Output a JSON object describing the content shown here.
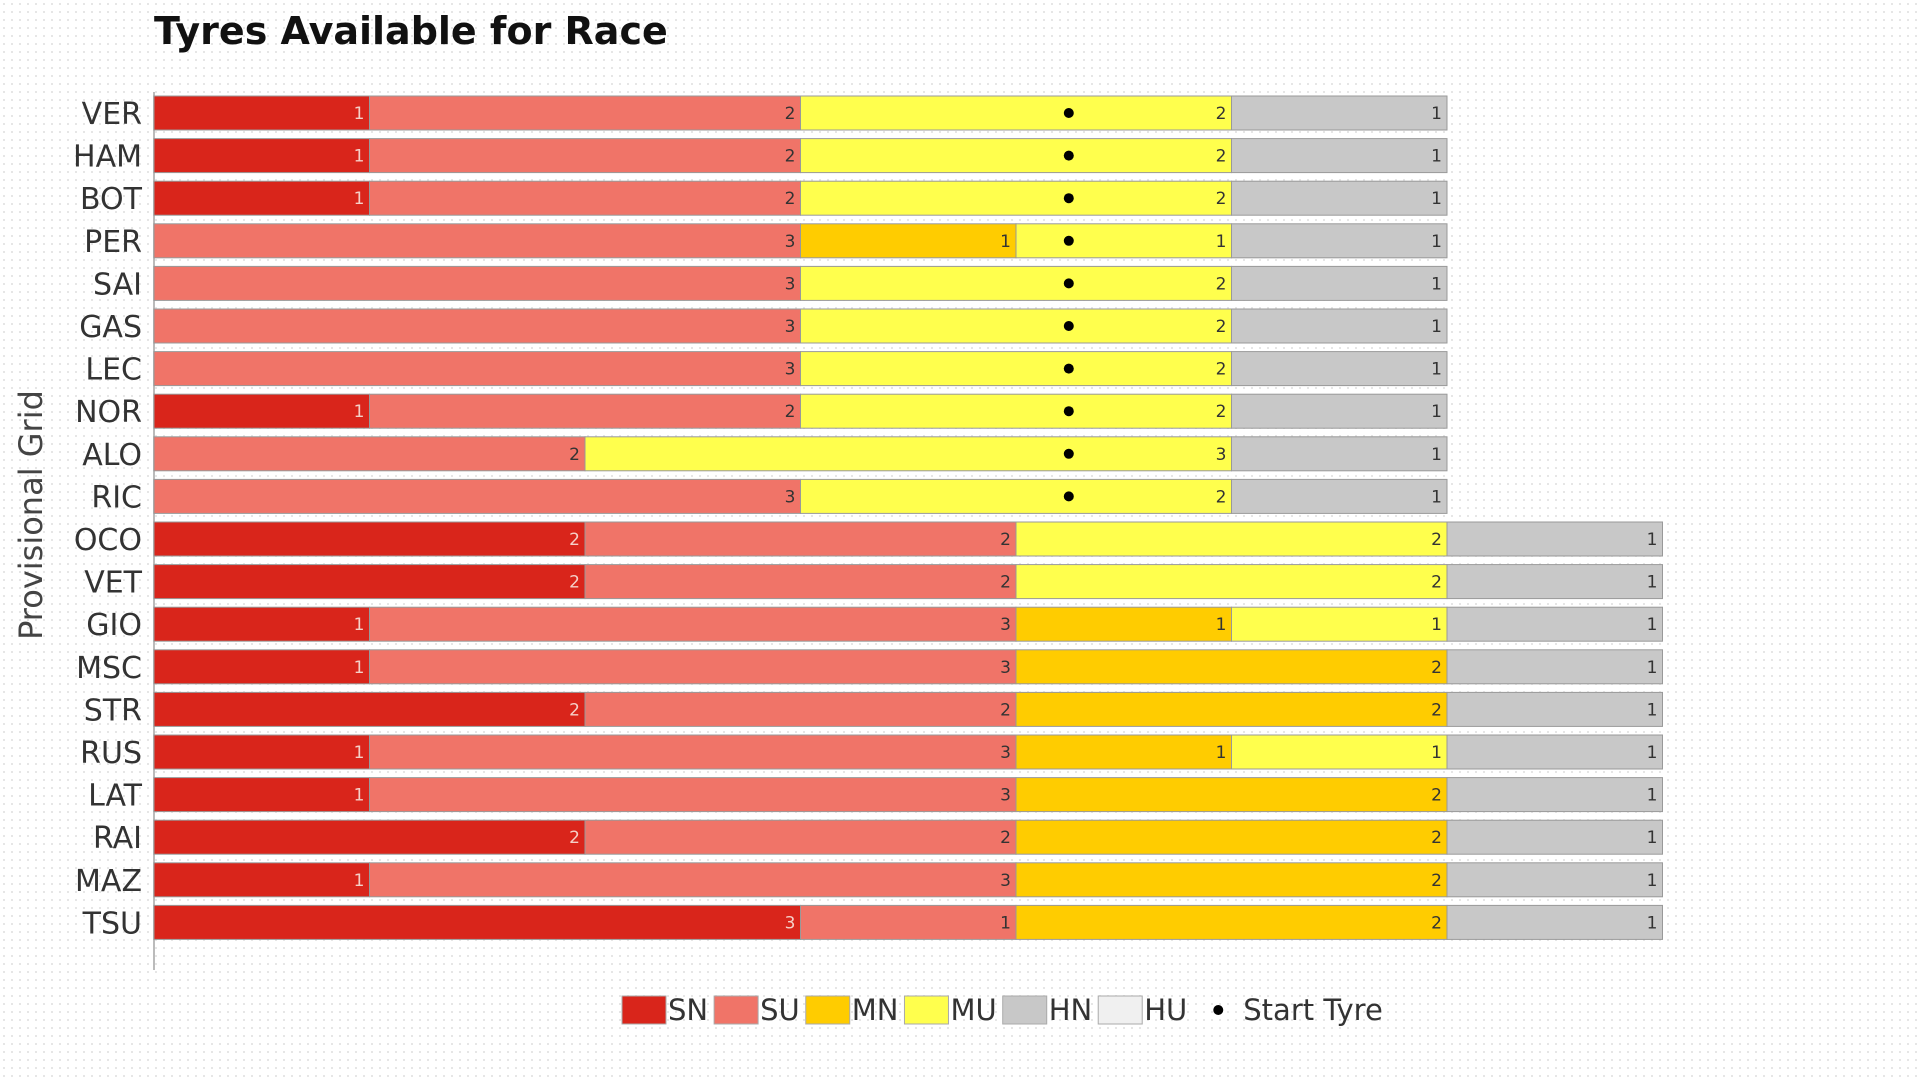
{
  "chart_data": {
    "type": "bar",
    "stacked": true,
    "orientation": "horizontal",
    "title": "Tyres Available for Race",
    "ylabel": "Provisional Grid",
    "xlabel": "",
    "grid": false,
    "legend_position": "bottom",
    "tyre_colors": {
      "SN": "#d9251b",
      "SU": "#f07468",
      "MN": "#ffcc00",
      "MU": "#ffff4d",
      "HN": "#c8c8c8",
      "HU": "#f0f0f0"
    },
    "legend": [
      {
        "key": "SN",
        "label": "SN"
      },
      {
        "key": "SU",
        "label": "SU"
      },
      {
        "key": "MN",
        "label": "MN"
      },
      {
        "key": "MU",
        "label": "MU"
      },
      {
        "key": "HN",
        "label": "HN"
      },
      {
        "key": "HU",
        "label": "HU"
      },
      {
        "key": "start",
        "label": "Start Tyre",
        "symbol": "•"
      }
    ],
    "rows": [
      {
        "driver": "VER",
        "segments": [
          [
            "SN",
            1
          ],
          [
            "SU",
            2
          ],
          [
            "MU",
            2
          ],
          [
            "HN",
            1
          ]
        ],
        "start_tyre": true
      },
      {
        "driver": "HAM",
        "segments": [
          [
            "SN",
            1
          ],
          [
            "SU",
            2
          ],
          [
            "MU",
            2
          ],
          [
            "HN",
            1
          ]
        ],
        "start_tyre": true
      },
      {
        "driver": "BOT",
        "segments": [
          [
            "SN",
            1
          ],
          [
            "SU",
            2
          ],
          [
            "MU",
            2
          ],
          [
            "HN",
            1
          ]
        ],
        "start_tyre": true
      },
      {
        "driver": "PER",
        "segments": [
          [
            "SU",
            3
          ],
          [
            "MN",
            1
          ],
          [
            "MU",
            1
          ],
          [
            "HN",
            1
          ]
        ],
        "start_tyre": true
      },
      {
        "driver": "SAI",
        "segments": [
          [
            "SU",
            3
          ],
          [
            "MU",
            2
          ],
          [
            "HN",
            1
          ]
        ],
        "start_tyre": true
      },
      {
        "driver": "GAS",
        "segments": [
          [
            "SU",
            3
          ],
          [
            "MU",
            2
          ],
          [
            "HN",
            1
          ]
        ],
        "start_tyre": true
      },
      {
        "driver": "LEC",
        "segments": [
          [
            "SU",
            3
          ],
          [
            "MU",
            2
          ],
          [
            "HN",
            1
          ]
        ],
        "start_tyre": true
      },
      {
        "driver": "NOR",
        "segments": [
          [
            "SN",
            1
          ],
          [
            "SU",
            2
          ],
          [
            "MU",
            2
          ],
          [
            "HN",
            1
          ]
        ],
        "start_tyre": true
      },
      {
        "driver": "ALO",
        "segments": [
          [
            "SU",
            2
          ],
          [
            "MU",
            3
          ],
          [
            "HN",
            1
          ]
        ],
        "start_tyre": true
      },
      {
        "driver": "RIC",
        "segments": [
          [
            "SU",
            3
          ],
          [
            "MU",
            2
          ],
          [
            "HN",
            1
          ]
        ],
        "start_tyre": true
      },
      {
        "driver": "OCO",
        "segments": [
          [
            "SN",
            2
          ],
          [
            "SU",
            2
          ],
          [
            "MU",
            2
          ],
          [
            "HN",
            1
          ]
        ],
        "start_tyre": false
      },
      {
        "driver": "VET",
        "segments": [
          [
            "SN",
            2
          ],
          [
            "SU",
            2
          ],
          [
            "MU",
            2
          ],
          [
            "HN",
            1
          ]
        ],
        "start_tyre": false
      },
      {
        "driver": "GIO",
        "segments": [
          [
            "SN",
            1
          ],
          [
            "SU",
            3
          ],
          [
            "MN",
            1
          ],
          [
            "MU",
            1
          ],
          [
            "HN",
            1
          ]
        ],
        "start_tyre": false
      },
      {
        "driver": "MSC",
        "segments": [
          [
            "SN",
            1
          ],
          [
            "SU",
            3
          ],
          [
            "MN",
            2
          ],
          [
            "HN",
            1
          ]
        ],
        "start_tyre": false
      },
      {
        "driver": "STR",
        "segments": [
          [
            "SN",
            2
          ],
          [
            "SU",
            2
          ],
          [
            "MN",
            2
          ],
          [
            "HN",
            1
          ]
        ],
        "start_tyre": false
      },
      {
        "driver": "RUS",
        "segments": [
          [
            "SN",
            1
          ],
          [
            "SU",
            3
          ],
          [
            "MN",
            1
          ],
          [
            "MU",
            1
          ],
          [
            "HN",
            1
          ]
        ],
        "start_tyre": false
      },
      {
        "driver": "LAT",
        "segments": [
          [
            "SN",
            1
          ],
          [
            "SU",
            3
          ],
          [
            "MN",
            2
          ],
          [
            "HN",
            1
          ]
        ],
        "start_tyre": false
      },
      {
        "driver": "RAI",
        "segments": [
          [
            "SN",
            2
          ],
          [
            "SU",
            2
          ],
          [
            "MN",
            2
          ],
          [
            "HN",
            1
          ]
        ],
        "start_tyre": false
      },
      {
        "driver": "MAZ",
        "segments": [
          [
            "SN",
            1
          ],
          [
            "SU",
            3
          ],
          [
            "MN",
            2
          ],
          [
            "HN",
            1
          ]
        ],
        "start_tyre": false
      },
      {
        "driver": "TSU",
        "segments": [
          [
            "SN",
            3
          ],
          [
            "SU",
            1
          ],
          [
            "MN",
            2
          ],
          [
            "HN",
            1
          ]
        ],
        "start_tyre": false
      }
    ]
  }
}
